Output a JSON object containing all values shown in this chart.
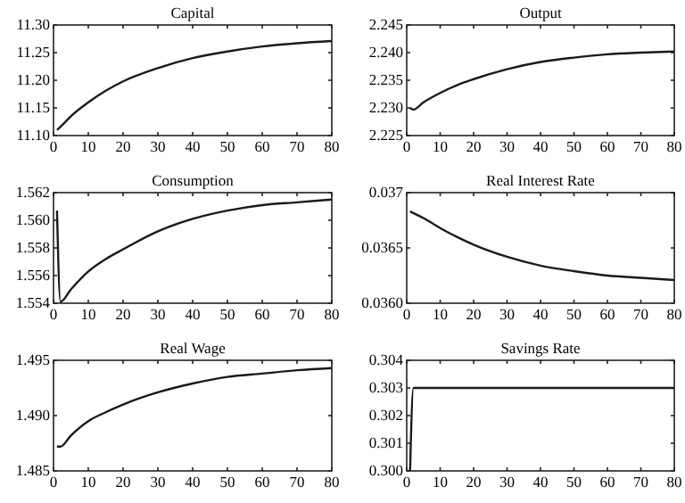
{
  "chart_data": [
    {
      "type": "line",
      "title": "Capital",
      "x": [
        1,
        3,
        5,
        10,
        15,
        20,
        30,
        40,
        50,
        60,
        70,
        80
      ],
      "series": [
        {
          "color": "#1a1a1a",
          "values": [
            11.11,
            11.122,
            11.135,
            11.16,
            11.181,
            11.198,
            11.222,
            11.24,
            11.252,
            11.261,
            11.267,
            11.271
          ]
        }
      ],
      "xlim": [
        0,
        80
      ],
      "xticks": [
        0,
        10,
        20,
        30,
        40,
        50,
        60,
        70,
        80
      ],
      "ylim": [
        11.1,
        11.3
      ],
      "yticks": [
        {
          "value": 11.1,
          "label": "11.10"
        },
        {
          "value": 11.15,
          "label": "11.15"
        },
        {
          "value": 11.2,
          "label": "11.20"
        },
        {
          "value": 11.25,
          "label": "11.25"
        },
        {
          "value": 11.3,
          "label": "11.30"
        }
      ],
      "grid": false
    },
    {
      "type": "line",
      "title": "Output",
      "x": [
        1,
        2,
        5,
        10,
        15,
        20,
        30,
        40,
        50,
        60,
        70,
        80
      ],
      "series": [
        {
          "color": "#1a1a1a",
          "values": [
            2.23,
            2.2297,
            2.231,
            2.2327,
            2.2341,
            2.2352,
            2.237,
            2.2383,
            2.2391,
            2.2397,
            2.24,
            2.2402
          ]
        }
      ],
      "xlim": [
        0,
        80
      ],
      "xticks": [
        0,
        10,
        20,
        30,
        40,
        50,
        60,
        70,
        80
      ],
      "ylim": [
        2.225,
        2.245
      ],
      "yticks": [
        2.225,
        {
          "value": 2.23,
          "label": "2.230"
        },
        2.235,
        {
          "value": 2.24,
          "label": "2.240"
        },
        2.245
      ],
      "grid": false
    },
    {
      "type": "line",
      "title": "Consumption",
      "x": [
        1,
        2,
        5,
        10,
        15,
        20,
        30,
        40,
        50,
        60,
        70,
        80
      ],
      "series": [
        {
          "color": "#1a1a1a",
          "values": [
            1.5607,
            1.5541,
            1.555,
            1.5563,
            1.5572,
            1.5579,
            1.5592,
            1.5601,
            1.5607,
            1.5611,
            1.5613,
            1.5615
          ]
        }
      ],
      "xlim": [
        0,
        80
      ],
      "xticks": [
        0,
        10,
        20,
        30,
        40,
        50,
        60,
        70,
        80
      ],
      "ylim": [
        1.554,
        1.562
      ],
      "yticks": [
        1.554,
        1.556,
        1.558,
        {
          "value": 1.56,
          "label": "1.560"
        },
        1.562
      ],
      "grid": false
    },
    {
      "type": "line",
      "title": "Real Interest Rate",
      "x": [
        1,
        5,
        10,
        15,
        20,
        30,
        40,
        50,
        60,
        70,
        80
      ],
      "series": [
        {
          "color": "#1a1a1a",
          "values": [
            0.03683,
            0.03677,
            0.03668,
            0.0366,
            0.03653,
            0.03642,
            0.03634,
            0.03629,
            0.03625,
            0.03623,
            0.03621
          ]
        }
      ],
      "xlim": [
        0,
        80
      ],
      "xticks": [
        0,
        10,
        20,
        30,
        40,
        50,
        60,
        70,
        80
      ],
      "ylim": [
        0.036,
        0.037
      ],
      "yticks": [
        {
          "value": 0.036,
          "label": "0.0360"
        },
        0.0365,
        0.037
      ],
      "grid": false
    },
    {
      "type": "line",
      "title": "Real Wage",
      "x": [
        1,
        2,
        5,
        10,
        15,
        20,
        30,
        40,
        50,
        60,
        70,
        80
      ],
      "series": [
        {
          "color": "#1a1a1a",
          "values": [
            1.4872,
            1.4872,
            1.4882,
            1.4895,
            1.4903,
            1.491,
            1.4921,
            1.4929,
            1.4935,
            1.4938,
            1.4941,
            1.4943
          ]
        }
      ],
      "xlim": [
        0,
        80
      ],
      "xticks": [
        0,
        10,
        20,
        30,
        40,
        50,
        60,
        70,
        80
      ],
      "ylim": [
        1.485,
        1.495
      ],
      "yticks": [
        1.485,
        {
          "value": 1.49,
          "label": "1.490"
        },
        1.495
      ],
      "grid": false
    },
    {
      "type": "line",
      "title": "Savings Rate",
      "x": [
        1,
        2,
        80
      ],
      "series": [
        {
          "color": "#1a1a1a",
          "values": [
            0.3,
            0.303,
            0.303
          ]
        }
      ],
      "xlim": [
        0,
        80
      ],
      "xticks": [
        0,
        10,
        20,
        30,
        40,
        50,
        60,
        70,
        80
      ],
      "ylim": [
        0.3,
        0.304
      ],
      "yticks": [
        {
          "value": 0.3,
          "label": "0.300"
        },
        0.301,
        0.302,
        0.303,
        0.304
      ],
      "grid": false
    }
  ]
}
